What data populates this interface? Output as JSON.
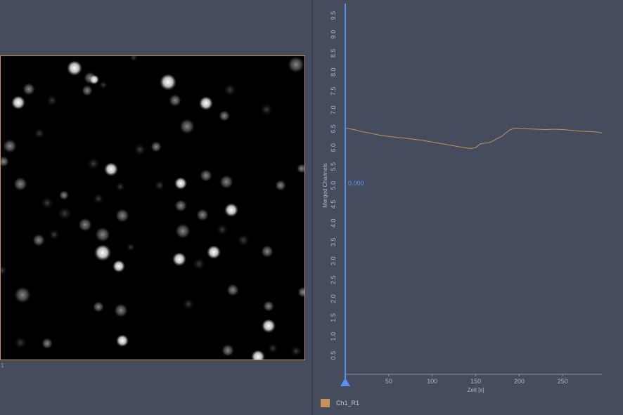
{
  "image_view": {
    "region_label": "1",
    "frame_color": "#c8905a"
  },
  "chart_data": {
    "type": "line",
    "title": "",
    "xlabel": "Zeit [s]",
    "ylabel": "Merged Channels",
    "xlim": [
      0,
      295
    ],
    "ylim": [
      0,
      9.8
    ],
    "x_ticks": [
      50,
      100,
      150,
      200,
      250
    ],
    "y_ticks": [
      0.5,
      1.0,
      1.5,
      2.0,
      2.5,
      3.0,
      3.5,
      4.0,
      4.5,
      5.0,
      5.5,
      6.0,
      6.5,
      7.0,
      7.5,
      8.0,
      8.5,
      9.0,
      9.5
    ],
    "cursor": {
      "x": 0,
      "value_label": "0,000",
      "color": "#5b8ff0"
    },
    "series": [
      {
        "name": "Ch1_R1",
        "color": "#c8905a",
        "x": [
          0,
          10,
          20,
          30,
          40,
          50,
          60,
          70,
          80,
          90,
          100,
          110,
          120,
          130,
          140,
          145,
          150,
          155,
          160,
          165,
          170,
          175,
          180,
          185,
          190,
          195,
          200,
          210,
          220,
          230,
          240,
          250,
          260,
          270,
          280,
          290,
          295
        ],
        "y": [
          6.52,
          6.48,
          6.42,
          6.38,
          6.33,
          6.3,
          6.27,
          6.25,
          6.22,
          6.19,
          6.15,
          6.11,
          6.07,
          6.03,
          5.99,
          5.98,
          6.0,
          6.1,
          6.12,
          6.13,
          6.18,
          6.25,
          6.3,
          6.4,
          6.48,
          6.51,
          6.52,
          6.5,
          6.49,
          6.48,
          6.49,
          6.48,
          6.46,
          6.44,
          6.43,
          6.41,
          6.39
        ]
      }
    ]
  },
  "legend": {
    "label": "Ch1_R1"
  },
  "colors": {
    "background": "#454c5e",
    "series": "#c8905a",
    "cursor": "#5b8ff0"
  }
}
